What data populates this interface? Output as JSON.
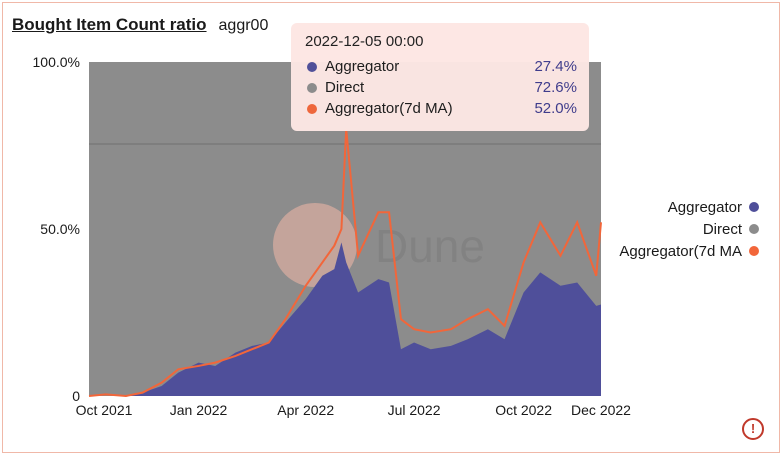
{
  "header": {
    "title": "Bought Item Count ratio",
    "subtitle": "aggr00"
  },
  "tooltip": {
    "date": "2022-12-05 00:00",
    "rows": [
      {
        "name": "Aggregator",
        "value": "27.4%",
        "color": "#4f4f9a"
      },
      {
        "name": "Direct",
        "value": "72.6%",
        "color": "#8c8c8c"
      },
      {
        "name": "Aggregator(7d MA)",
        "value": "52.0%",
        "color": "#f2663a"
      }
    ]
  },
  "legend": [
    {
      "name": "Aggregator",
      "color": "#4f4f9a"
    },
    {
      "name": "Direct",
      "color": "#8c8c8c"
    },
    {
      "name": "Aggregator(7d MA",
      "color": "#f2663a"
    }
  ],
  "watermark": "Dune",
  "warning_icon": "!",
  "chart_data": {
    "type": "area",
    "x_tick_labels": [
      "Oct 2021",
      "Jan 2022",
      "Apr 2022",
      "Jul 2022",
      "Oct 2022",
      "Dec 2022"
    ],
    "y_tick_labels": [
      "100.0%",
      "50.0%",
      "0"
    ],
    "ylim": [
      0,
      100
    ],
    "x": [
      "2021-10-01",
      "2021-10-15",
      "2021-11-01",
      "2021-11-15",
      "2021-12-01",
      "2021-12-15",
      "2022-01-01",
      "2022-01-15",
      "2022-02-01",
      "2022-02-15",
      "2022-03-01",
      "2022-03-15",
      "2022-04-01",
      "2022-04-15",
      "2022-04-25",
      "2022-05-01",
      "2022-05-05",
      "2022-05-15",
      "2022-06-01",
      "2022-06-10",
      "2022-06-20",
      "2022-07-01",
      "2022-07-15",
      "2022-08-01",
      "2022-08-15",
      "2022-09-01",
      "2022-09-15",
      "2022-10-01",
      "2022-10-15",
      "2022-11-01",
      "2022-11-15",
      "2022-12-01",
      "2022-12-05"
    ],
    "series": [
      {
        "name": "Aggregator",
        "color": "#4f4f9a",
        "values": [
          0,
          0,
          0,
          1,
          3,
          7,
          10,
          9,
          13,
          15,
          16,
          22,
          29,
          36,
          38,
          46,
          40,
          31,
          35,
          34,
          14,
          16,
          14,
          15,
          17,
          20,
          17,
          31,
          37,
          33,
          34,
          27,
          27.4
        ]
      },
      {
        "name": "Direct",
        "color": "#8c8c8c",
        "values": [
          100,
          100,
          100,
          99,
          97,
          93,
          90,
          91,
          87,
          85,
          84,
          78,
          71,
          64,
          62,
          54,
          60,
          69,
          65,
          66,
          86,
          84,
          86,
          85,
          83,
          80,
          83,
          69,
          63,
          67,
          66,
          73,
          72.6
        ]
      },
      {
        "name": "Aggregator(7d MA)",
        "color": "#f2663a",
        "values": [
          0,
          0.5,
          0,
          1,
          4,
          8,
          9,
          10,
          12,
          14,
          16,
          23,
          33,
          40,
          45,
          50,
          80,
          42,
          55,
          55,
          23,
          20,
          19,
          20,
          23,
          26,
          21,
          40,
          52,
          42,
          52,
          36,
          52
        ]
      }
    ],
    "grid": false,
    "legend_position": "right"
  }
}
